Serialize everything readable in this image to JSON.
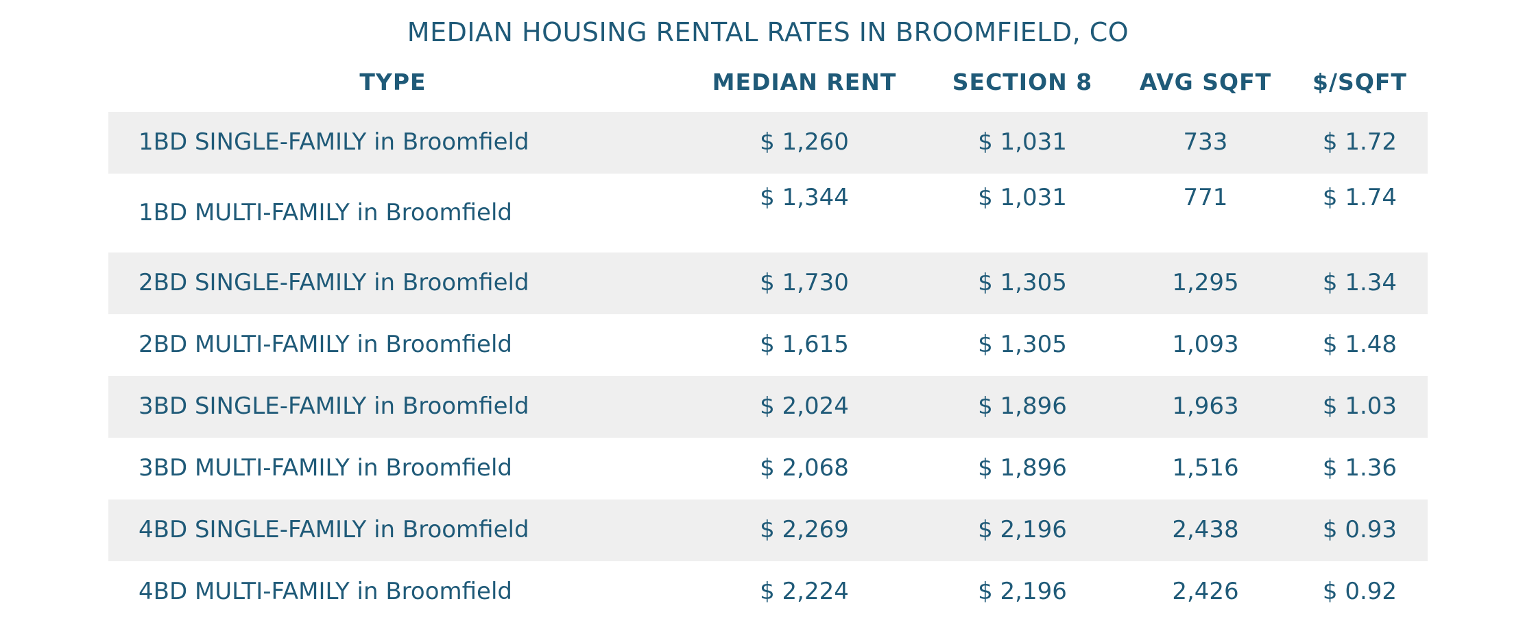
{
  "title": "MEDIAN HOUSING RENTAL RATES IN BROOMFIELD, CO",
  "columns": [
    "TYPE",
    "MEDIAN RENT",
    "SECTION 8",
    "AVG SQFT",
    "$/SQFT"
  ],
  "rows": [
    {
      "type": "1BD SINGLE-FAMILY in Broomfield",
      "median_rent": "$ 1,260",
      "section8": "$ 1,031",
      "avg_sqft": "733",
      "per_sqft": "$ 1.72"
    },
    {
      "type": "1BD MULTI-FAMILY in Broomfield",
      "median_rent": "$ 1,344",
      "section8": "$ 1,031",
      "avg_sqft": "771",
      "per_sqft": "$ 1.74"
    },
    {
      "type": "2BD SINGLE-FAMILY in Broomfield",
      "median_rent": "$ 1,730",
      "section8": "$ 1,305",
      "avg_sqft": "1,295",
      "per_sqft": "$ 1.34"
    },
    {
      "type": "2BD MULTI-FAMILY in Broomfield",
      "median_rent": "$ 1,615",
      "section8": "$ 1,305",
      "avg_sqft": "1,093",
      "per_sqft": "$ 1.48"
    },
    {
      "type": "3BD SINGLE-FAMILY in Broomfield",
      "median_rent": "$ 2,024",
      "section8": "$ 1,896",
      "avg_sqft": "1,963",
      "per_sqft": "$ 1.03"
    },
    {
      "type": "3BD MULTI-FAMILY in Broomfield",
      "median_rent": "$ 2,068",
      "section8": "$ 1,896",
      "avg_sqft": "1,516",
      "per_sqft": "$ 1.36"
    },
    {
      "type": "4BD SINGLE-FAMILY in Broomfield",
      "median_rent": "$ 2,269",
      "section8": "$ 2,196",
      "avg_sqft": "2,438",
      "per_sqft": "$ 0.93"
    },
    {
      "type": "4BD MULTI-FAMILY in Broomfield",
      "median_rent": "$ 2,224",
      "section8": "$ 2,196",
      "avg_sqft": "2,426",
      "per_sqft": "$ 0.92"
    }
  ],
  "colors": {
    "text": "#1f5a78",
    "row_shade": "#efefef",
    "background": "#ffffff"
  }
}
